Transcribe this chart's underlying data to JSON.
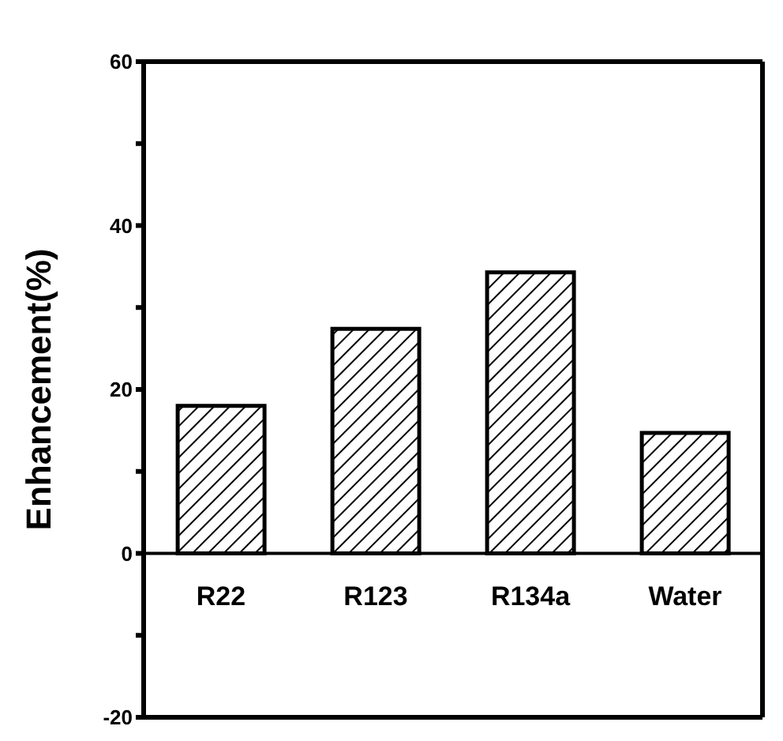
{
  "chart_data": {
    "type": "bar",
    "ylabel": "Enhancement(%)",
    "categories": [
      "R22",
      "R123",
      "R134a",
      "Water"
    ],
    "values": [
      18.0,
      27.4,
      34.3,
      14.7
    ],
    "color": "#000000",
    "ylim": [
      -20,
      60
    ],
    "yticks": [
      -20,
      {
        "value": -10,
        "label": null
      },
      0,
      {
        "value": 10,
        "label": null
      },
      20,
      {
        "value": 30,
        "label": null
      },
      40,
      {
        "value": 50,
        "label": null
      },
      60
    ],
    "grid": false
  }
}
